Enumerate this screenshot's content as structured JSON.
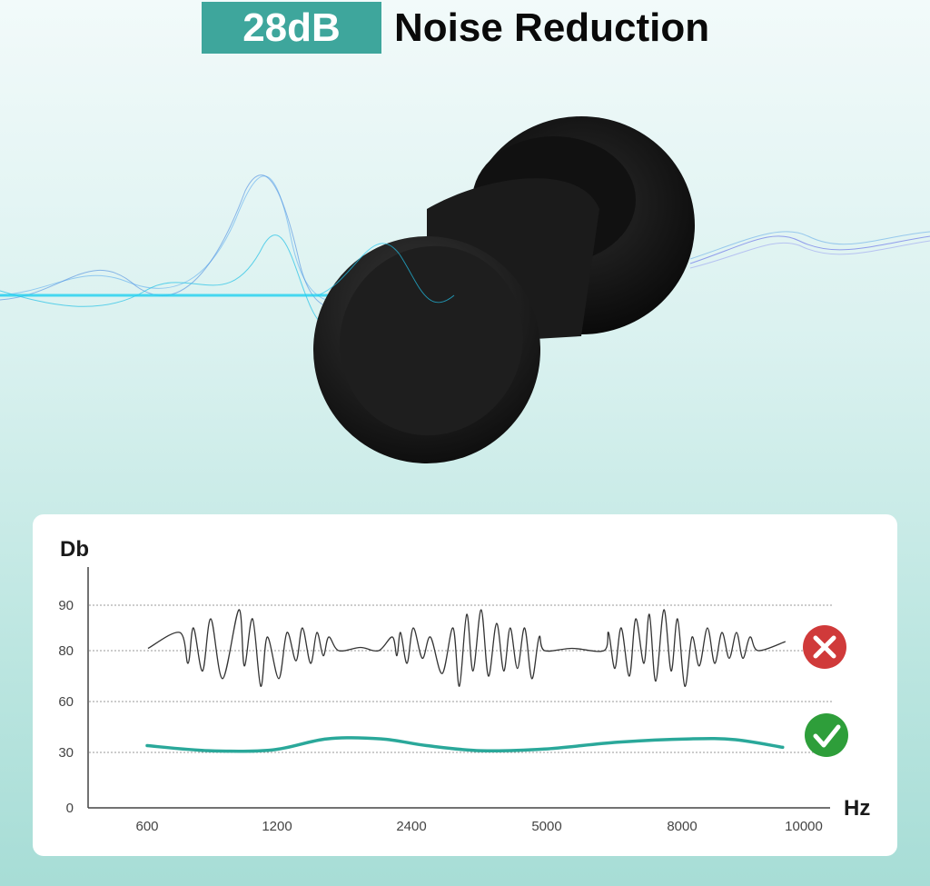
{
  "header": {
    "badge": "28dB",
    "title": "Noise Reduction"
  },
  "colors": {
    "accent": "#3ea69c",
    "noise_line": "#333333",
    "reduced_line": "#2aa89a",
    "bad": "#d03a3a",
    "good": "#2e9e3a"
  },
  "icons": {
    "bad": "close-x-circle-icon",
    "good": "checkmark-circle-icon"
  },
  "chart_data": {
    "type": "line",
    "ylabel": "Db",
    "xlabel": "Hz",
    "y_ticks": [
      0,
      30,
      60,
      80,
      90
    ],
    "x_ticks": [
      "600",
      "1200",
      "2400",
      "5000",
      "8000",
      "10000"
    ],
    "grid": "horizontal dotted",
    "series": [
      {
        "id": "unprotected",
        "status": "bad",
        "points": [
          [
            604,
            80.5
          ],
          [
            751,
            84
          ],
          [
            789,
            75
          ],
          [
            814,
            85
          ],
          [
            856,
            72
          ],
          [
            894,
            87
          ],
          [
            949,
            69
          ],
          [
            1024,
            89
          ],
          [
            1049,
            74
          ],
          [
            1087,
            87
          ],
          [
            1125,
            66
          ],
          [
            1155,
            83
          ],
          [
            1216,
            69
          ],
          [
            1289,
            84
          ],
          [
            1370,
            76
          ],
          [
            1427,
            85
          ],
          [
            1500,
            75
          ],
          [
            1556,
            84
          ],
          [
            1613,
            78
          ],
          [
            1662,
            83
          ],
          [
            1751,
            80
          ],
          [
            1945,
            80.7
          ],
          [
            2108,
            80
          ],
          [
            2230,
            83
          ],
          [
            2270,
            78
          ],
          [
            2303,
            84
          ],
          [
            2360,
            75
          ],
          [
            2435,
            85
          ],
          [
            2609,
            77
          ],
          [
            2765,
            83
          ],
          [
            2992,
            71
          ],
          [
            3200,
            85
          ],
          [
            3322,
            66
          ],
          [
            3462,
            88
          ],
          [
            3583,
            72
          ],
          [
            3740,
            89
          ],
          [
            3879,
            70
          ],
          [
            4036,
            86
          ],
          [
            4175,
            72
          ],
          [
            4297,
            85
          ],
          [
            4436,
            73
          ],
          [
            4575,
            85
          ],
          [
            4714,
            69
          ],
          [
            4853,
            83
          ],
          [
            4958,
            80
          ],
          [
            5563,
            80.5
          ],
          [
            6268,
            80
          ],
          [
            6369,
            84
          ],
          [
            6510,
            73
          ],
          [
            6651,
            85
          ],
          [
            6832,
            70
          ],
          [
            6973,
            87
          ],
          [
            7154,
            75
          ],
          [
            7275,
            88
          ],
          [
            7416,
            68
          ],
          [
            7597,
            89
          ],
          [
            7758,
            72
          ],
          [
            7899,
            87
          ],
          [
            8045,
            66
          ],
          [
            8164,
            83
          ],
          [
            8283,
            74
          ],
          [
            8417,
            85
          ],
          [
            8536,
            75
          ],
          [
            8655,
            84
          ],
          [
            8775,
            77
          ],
          [
            8894,
            84
          ],
          [
            8998,
            77
          ],
          [
            9117,
            83
          ],
          [
            9251,
            80
          ],
          [
            9698,
            82
          ]
        ]
      },
      {
        "id": "with-earplugs",
        "status": "good",
        "points": [
          [
            600,
            34
          ],
          [
            886,
            31
          ],
          [
            1180,
            31.5
          ],
          [
            1646,
            38
          ],
          [
            2132,
            38
          ],
          [
            2696,
            34
          ],
          [
            3740,
            31
          ],
          [
            4958,
            32
          ],
          [
            6570,
            36
          ],
          [
            8134,
            38
          ],
          [
            8879,
            37.5
          ],
          [
            9653,
            33
          ]
        ]
      }
    ]
  }
}
